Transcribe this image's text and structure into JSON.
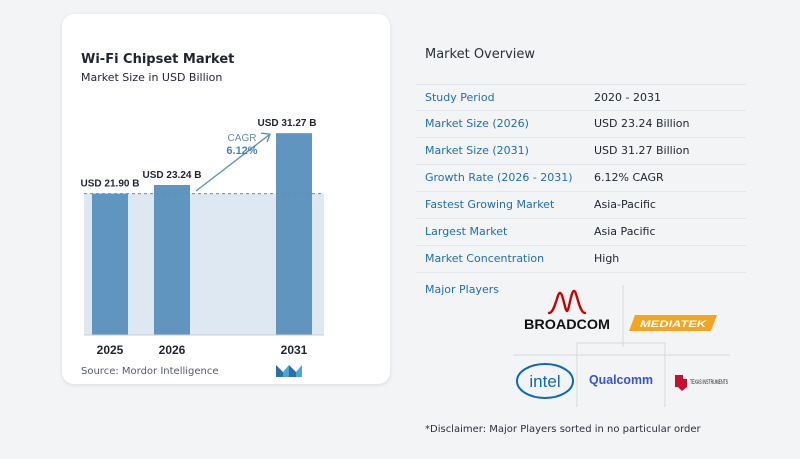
{
  "chart_data": {
    "type": "bar",
    "title": "Wi-Fi Chipset Market",
    "subtitle": "Market Size in USD Billion",
    "categories": [
      "2025",
      "2026",
      "2031"
    ],
    "values": [
      21.9,
      23.24,
      31.27
    ],
    "data_labels": [
      "USD 21.90 B",
      "USD 23.24 B",
      "USD 31.27 B"
    ],
    "annotation": {
      "label": "CAGR",
      "value": "6.12%"
    },
    "ylim": [
      0,
      33
    ],
    "bar_color": "#5f95bf",
    "shade_color": "#dde8f2"
  },
  "source": "Source:  Mordor Intelligence",
  "overview": {
    "title": "Market Overview",
    "rows": [
      {
        "label": "Study Period",
        "value": "2020 - 2031"
      },
      {
        "label": "Market Size (2026)",
        "value": "USD 23.24 Billion"
      },
      {
        "label": "Market Size (2031)",
        "value": "USD 31.27 Billion"
      },
      {
        "label": "Growth Rate (2026 - 2031)",
        "value": "6.12% CAGR"
      },
      {
        "label": "Fastest Growing Market",
        "value": "Asia-Pacific"
      },
      {
        "label": "Largest Market",
        "value": "Asia Pacific"
      },
      {
        "label": "Market Concentration",
        "value": "High"
      }
    ]
  },
  "players": {
    "title": "Major Players",
    "logos": [
      "BROADCOM",
      "MEDIATEK",
      "intel",
      "Qualcomm",
      "TEXAS INSTRUMENTS"
    ]
  },
  "disclaimer": "*Disclaimer: Major Players sorted in no particular order",
  "colors": {
    "accent": "#1e6fb0",
    "bar": "#5f95bf"
  }
}
